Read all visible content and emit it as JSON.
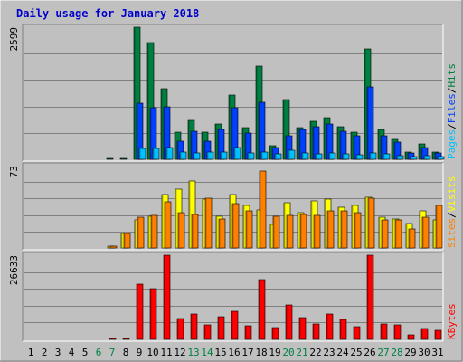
{
  "chart_data": {
    "type": "bar",
    "title": "Daily usage for January 2018",
    "categories": [
      "1",
      "2",
      "3",
      "4",
      "5",
      "6",
      "7",
      "8",
      "9",
      "10",
      "11",
      "12",
      "13",
      "14",
      "15",
      "16",
      "17",
      "18",
      "19",
      "20",
      "21",
      "22",
      "23",
      "24",
      "25",
      "26",
      "27",
      "28",
      "29",
      "30",
      "31"
    ],
    "weekend_days": [
      "6",
      "7",
      "13",
      "14",
      "20",
      "21",
      "27",
      "28"
    ],
    "colors": {
      "title": "#0000cc",
      "hits": "#008040",
      "files": "#0040ff",
      "pages": "#00c0ff",
      "visits": "#ffff00",
      "sites": "#ff8000",
      "kbytes": "#ff0000",
      "weekend_label": "#008040",
      "weekday_label": "#000000"
    },
    "panels": [
      {
        "ymax_label": "2599",
        "ylim": [
          0,
          2599
        ],
        "legend": [
          {
            "text": "Pages",
            "color": "#00c0ff"
          },
          {
            "text": "/",
            "color": "#000000"
          },
          {
            "text": "Files",
            "color": "#0040ff"
          },
          {
            "text": "/",
            "color": "#000000"
          },
          {
            "text": "Hits",
            "color": "#008040"
          }
        ],
        "series": [
          {
            "name": "Hits",
            "color": "#008040",
            "values": [
              0,
              0,
              0,
              0,
              0,
              0,
              20,
              20,
              2599,
              2300,
              1380,
              530,
              760,
              540,
              700,
              1260,
              620,
              1830,
              260,
              1170,
              630,
              750,
              820,
              640,
              540,
              2170,
              580,
              400,
              140,
              300,
              140
            ]
          },
          {
            "name": "Files",
            "color": "#0040ff",
            "values": [
              0,
              0,
              0,
              0,
              0,
              0,
              0,
              0,
              1100,
              1020,
              1040,
              350,
              560,
              350,
              580,
              1020,
              510,
              1130,
              230,
              470,
              580,
              640,
              690,
              550,
              460,
              1420,
              460,
              330,
              130,
              230,
              130
            ]
          },
          {
            "name": "Pages",
            "color": "#00c0ff",
            "values": [
              0,
              0,
              0,
              0,
              0,
              0,
              0,
              0,
              220,
              220,
              230,
              140,
              130,
              150,
              140,
              240,
              130,
              150,
              100,
              180,
              130,
              110,
              130,
              110,
              90,
              130,
              110,
              80,
              60,
              80,
              60
            ]
          }
        ]
      },
      {
        "ymax_label": "73",
        "ylim": [
          0,
          73
        ],
        "legend": [
          {
            "text": "Sites",
            "color": "#ff8000"
          },
          {
            "text": "/",
            "color": "#000000"
          },
          {
            "text": "Visits",
            "color": "#ffff00"
          }
        ],
        "series": [
          {
            "name": "Visits",
            "color": "#ffff00",
            "values": [
              0,
              0,
              0,
              0,
              0,
              0,
              2,
              13,
              25,
              28,
              47,
              52,
              59,
              43,
              28,
              47,
              38,
              34,
              21,
              40,
              31,
              42,
              43,
              36,
              38,
              45,
              27,
              26,
              22,
              33,
              25
            ]
          },
          {
            "name": "Sites",
            "color": "#ff8000",
            "values": [
              0,
              0,
              0,
              0,
              0,
              0,
              2,
              13,
              27,
              29,
              41,
              31,
              30,
              44,
              26,
              39,
              33,
              68,
              28,
              29,
              30,
              29,
              33,
              33,
              31,
              44,
              25,
              25,
              17,
              27,
              38
            ]
          }
        ]
      },
      {
        "ymax_label": "26633",
        "ylim": [
          0,
          26633
        ],
        "legend": [
          {
            "text": "KBytes",
            "color": "#ff0000"
          }
        ],
        "series": [
          {
            "name": "KBytes",
            "color": "#ff0000",
            "values": [
              0,
              0,
              0,
              0,
              0,
              0,
              350,
              350,
              17500,
              16000,
              26633,
              6500,
              8000,
              4500,
              7200,
              9000,
              4300,
              19000,
              3800,
              10800,
              6800,
              4900,
              8000,
              6300,
              4000,
              26633,
              5000,
              4600,
              1500,
              3500,
              2800
            ]
          }
        ]
      }
    ]
  }
}
